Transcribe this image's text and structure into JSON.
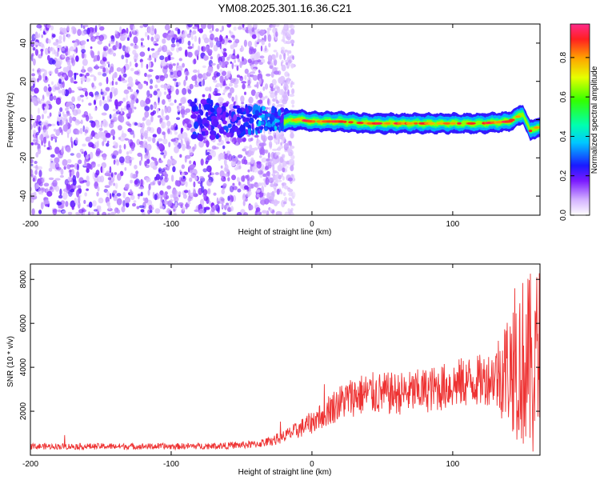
{
  "title": "YM08.2025.301.16.36.C21",
  "chart_data": [
    {
      "type": "heatmap",
      "title": "YM08.2025.301.16.36.C21",
      "xlabel": "Height of straight line (km)",
      "ylabel": "Frequency (Hz)",
      "xlim": [
        -200,
        162
      ],
      "ylim": [
        -50,
        50
      ],
      "x_ticks": [
        -200,
        -100,
        0,
        100
      ],
      "y_ticks": [
        -40,
        -20,
        0,
        20,
        40
      ],
      "colorbar": {
        "label": "Normalized spectral amplitude",
        "range": [
          0,
          0.97
        ],
        "ticks": [
          0.0,
          0.2,
          0.4,
          0.6,
          0.8
        ],
        "tick_labels": [
          "0.0",
          "0.2",
          "0.4",
          "0.6",
          "0.8"
        ]
      },
      "features": [
        {
          "name": "broadband-noise",
          "x_range": [
            -200,
            -20
          ],
          "y_range": [
            -50,
            50
          ],
          "amplitude": 0.15
        },
        {
          "name": "transition-blobs",
          "x_range": [
            -85,
            -20
          ],
          "y_range": [
            -12,
            12
          ],
          "amplitude": 0.25
        },
        {
          "name": "signal-ridge",
          "x_range": [
            -20,
            162
          ],
          "center_hz": -2,
          "amplitude": 0.95
        }
      ],
      "ridge": {
        "x": [
          -20,
          -10,
          0,
          10,
          20,
          40,
          60,
          80,
          100,
          120,
          140,
          150,
          155,
          160
        ],
        "y": [
          -1,
          0,
          -1,
          -1,
          -1,
          -2,
          -2,
          -2,
          -2,
          -2,
          -1,
          3,
          -6,
          -4
        ]
      }
    },
    {
      "type": "line",
      "xlabel": "Height of straight line (km)",
      "ylabel": "SNR (10 * v/v)",
      "xlim": [
        -200,
        162
      ],
      "ylim": [
        0,
        8700
      ],
      "x_ticks": [
        -200,
        -100,
        0,
        100
      ],
      "y_ticks": [
        2000,
        4000,
        6000,
        8000
      ],
      "color": "#ee3333",
      "series": [
        {
          "name": "SNR",
          "x": [
            -200,
            -150,
            -100,
            -60,
            -40,
            -30,
            -20,
            -10,
            0,
            10,
            20,
            30,
            40,
            50,
            60,
            70,
            80,
            90,
            100,
            110,
            120,
            130,
            140,
            145,
            150,
            155,
            160,
            162
          ],
          "y": [
            400,
            400,
            400,
            430,
            500,
            620,
            850,
            1150,
            1500,
            2000,
            2400,
            2700,
            2800,
            2800,
            2800,
            2850,
            2950,
            3050,
            3200,
            3350,
            3400,
            3600,
            4000,
            4300,
            4200,
            4000,
            3900,
            3900
          ]
        }
      ]
    }
  ]
}
